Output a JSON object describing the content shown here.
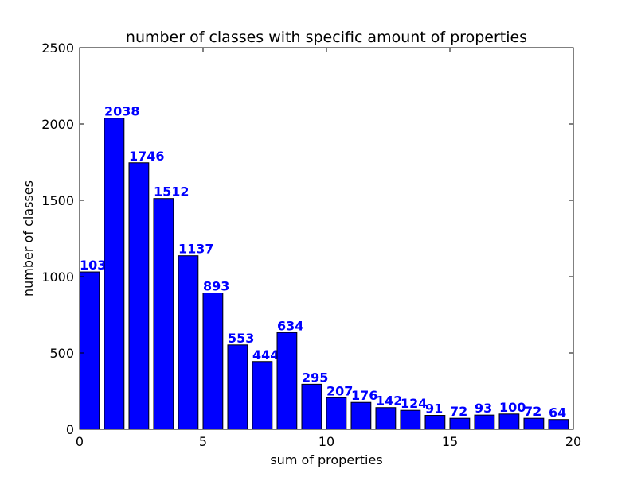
{
  "chart_data": {
    "type": "bar",
    "title": "number of classes with specific amount of properties",
    "x_label": "sum of properties",
    "y_label": "number of classes",
    "x": [
      0,
      1,
      2,
      3,
      4,
      5,
      6,
      7,
      8,
      9,
      10,
      11,
      12,
      13,
      14,
      15,
      16,
      17,
      18,
      19
    ],
    "values": [
      1031,
      2038,
      1746,
      1512,
      1137,
      893,
      553,
      444,
      634,
      295,
      207,
      176,
      142,
      124,
      91,
      72,
      93,
      100,
      72,
      64
    ],
    "color": "#0000ff",
    "label_color": "#0000ff",
    "xlim": [
      0,
      20
    ],
    "xticks": [
      0,
      5,
      10,
      15,
      20
    ],
    "ylim": [
      0,
      2500
    ],
    "yticks": [
      0,
      500,
      1000,
      1500,
      2000,
      2500
    ],
    "grid": false
  }
}
